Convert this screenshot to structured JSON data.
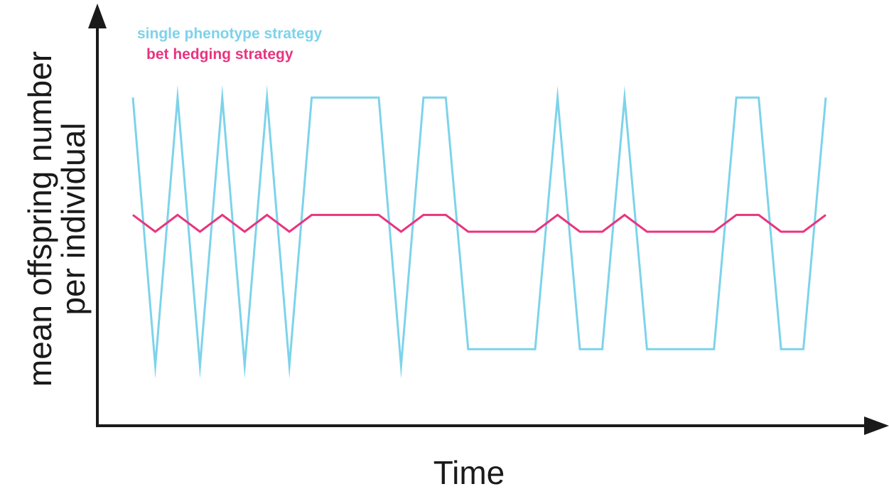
{
  "chart_data": {
    "type": "line",
    "title": "",
    "xlabel": "Time",
    "ylabel": [
      "mean offspring number",
      "per individual"
    ],
    "grid": false,
    "legend_placement": "top-left",
    "xlim": [
      0,
      31
    ],
    "ylim": [
      0,
      10
    ],
    "x": [
      0,
      1,
      2,
      3,
      4,
      5,
      6,
      7,
      8,
      9,
      10,
      11,
      12,
      13,
      14,
      15,
      16,
      17,
      18,
      19,
      20,
      21,
      22,
      23,
      24,
      25,
      26,
      27,
      28,
      29,
      30,
      31
    ],
    "series": [
      {
        "name": "single phenotype strategy",
        "color": "#7DD3EA",
        "values": [
          9.0,
          1.0,
          9.0,
          1.0,
          9.0,
          1.0,
          9.0,
          1.0,
          9.0,
          9.0,
          9.0,
          9.0,
          1.0,
          9.0,
          9.0,
          1.5,
          1.5,
          1.5,
          1.5,
          9.0,
          1.5,
          1.5,
          9.0,
          1.5,
          1.5,
          1.5,
          1.5,
          9.0,
          9.0,
          1.5,
          1.5,
          9.0
        ]
      },
      {
        "name": "bet hedging strategy",
        "color": "#E8347F",
        "values": [
          5.5,
          5.0,
          5.5,
          5.0,
          5.5,
          5.0,
          5.5,
          5.0,
          5.5,
          5.5,
          5.5,
          5.5,
          5.0,
          5.5,
          5.5,
          5.0,
          5.0,
          5.0,
          5.0,
          5.5,
          5.0,
          5.0,
          5.5,
          5.0,
          5.0,
          5.0,
          5.0,
          5.5,
          5.5,
          5.0,
          5.0,
          5.5
        ]
      }
    ]
  }
}
